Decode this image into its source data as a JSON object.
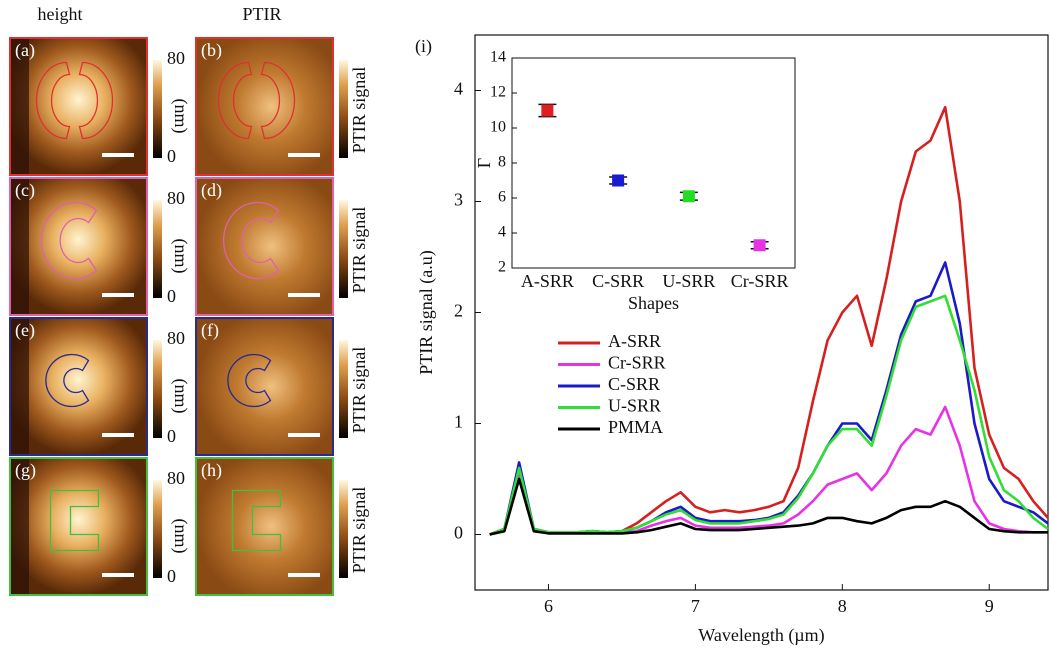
{
  "panels": {
    "column_titles": [
      "height",
      "PTIR"
    ],
    "labels": [
      "(a)",
      "(b)",
      "(c)",
      "(d)",
      "(e)",
      "(f)",
      "(g)",
      "(h)"
    ],
    "height_colorbar": {
      "lim": [
        0,
        80
      ],
      "label": "(nm)"
    },
    "ptir_colorbar": {
      "label": "PTIR signal"
    }
  },
  "chart_data": [
    {
      "type": "line",
      "label": "(i)",
      "xlabel": "Wavelength (µm)",
      "ylabel": "PTIR signal (a.u)",
      "x": [
        5.6,
        5.7,
        5.8,
        5.9,
        6.0,
        6.1,
        6.2,
        6.3,
        6.4,
        6.5,
        6.6,
        6.7,
        6.8,
        6.9,
        7.0,
        7.1,
        7.2,
        7.3,
        7.4,
        7.5,
        7.6,
        7.7,
        7.8,
        7.9,
        8.0,
        8.1,
        8.2,
        8.3,
        8.4,
        8.5,
        8.6,
        8.7,
        8.8,
        8.9,
        9.0,
        9.1,
        9.2,
        9.3,
        9.4
      ],
      "series": [
        {
          "name": "A-SRR",
          "color": "#d62020",
          "values": [
            0,
            0.05,
            0.6,
            0.05,
            0.02,
            0.02,
            0.02,
            0.03,
            0.02,
            0.03,
            0.1,
            0.2,
            0.3,
            0.38,
            0.25,
            0.2,
            0.22,
            0.2,
            0.22,
            0.25,
            0.3,
            0.6,
            1.2,
            1.75,
            2.0,
            2.15,
            1.7,
            2.3,
            3.0,
            3.45,
            3.55,
            3.85,
            3.0,
            1.5,
            0.9,
            0.6,
            0.5,
            0.3,
            0.15
          ]
        },
        {
          "name": "Cr-SRR",
          "color": "#e633e6",
          "values": [
            0,
            0.05,
            0.55,
            0.05,
            0.02,
            0.02,
            0.02,
            0.02,
            0.02,
            0.02,
            0.03,
            0.08,
            0.12,
            0.15,
            0.08,
            0.06,
            0.06,
            0.06,
            0.07,
            0.08,
            0.1,
            0.18,
            0.3,
            0.45,
            0.5,
            0.55,
            0.4,
            0.55,
            0.8,
            0.95,
            0.9,
            1.15,
            0.8,
            0.3,
            0.1,
            0.05,
            0.03,
            0.02,
            0.02
          ]
        },
        {
          "name": "C-SRR",
          "color": "#1a1ac8",
          "values": [
            0,
            0.05,
            0.65,
            0.05,
            0.02,
            0.02,
            0.02,
            0.03,
            0.02,
            0.03,
            0.06,
            0.12,
            0.2,
            0.25,
            0.15,
            0.12,
            0.12,
            0.12,
            0.13,
            0.15,
            0.2,
            0.35,
            0.55,
            0.8,
            1.0,
            1.0,
            0.85,
            1.3,
            1.8,
            2.1,
            2.15,
            2.45,
            1.9,
            1.0,
            0.5,
            0.3,
            0.25,
            0.2,
            0.1
          ]
        },
        {
          "name": "U-SRR",
          "color": "#33dd33",
          "values": [
            0,
            0.05,
            0.6,
            0.05,
            0.02,
            0.02,
            0.02,
            0.03,
            0.02,
            0.03,
            0.06,
            0.12,
            0.18,
            0.22,
            0.13,
            0.1,
            0.1,
            0.1,
            0.12,
            0.14,
            0.18,
            0.33,
            0.55,
            0.8,
            0.95,
            0.95,
            0.8,
            1.25,
            1.75,
            2.05,
            2.1,
            2.15,
            1.75,
            1.3,
            0.7,
            0.4,
            0.3,
            0.15,
            0.05
          ]
        },
        {
          "name": "PMMA",
          "color": "#000000",
          "values": [
            0,
            0.03,
            0.5,
            0.03,
            0.01,
            0.01,
            0.01,
            0.01,
            0.01,
            0.01,
            0.02,
            0.04,
            0.07,
            0.1,
            0.05,
            0.04,
            0.04,
            0.04,
            0.05,
            0.06,
            0.07,
            0.08,
            0.1,
            0.15,
            0.15,
            0.12,
            0.1,
            0.15,
            0.22,
            0.25,
            0.25,
            0.3,
            0.25,
            0.15,
            0.05,
            0.03,
            0.02,
            0.02,
            0.02
          ]
        }
      ],
      "xlim": [
        5.5,
        9.4
      ],
      "ylim": [
        -0.5,
        4.5
      ],
      "xticks": [
        6,
        7,
        8,
        9
      ],
      "yticks": [
        0,
        1,
        2,
        3,
        4
      ],
      "legend": "center left"
    },
    {
      "type": "errorbar",
      "xlabel": "Shapes",
      "ylabel": "Γ",
      "categories": [
        "A-SRR",
        "C-SRR",
        "U-SRR",
        "Cr-SRR"
      ],
      "values": [
        11,
        7,
        6.1,
        3.3
      ],
      "errors": [
        0.35,
        0.2,
        0.22,
        0.2
      ],
      "colors": [
        "#e02020",
        "#1a1ad0",
        "#22dd22",
        "#e633e6"
      ],
      "ylim": [
        2,
        14
      ],
      "yticks": [
        2,
        4,
        6,
        8,
        10,
        12,
        14
      ]
    }
  ]
}
